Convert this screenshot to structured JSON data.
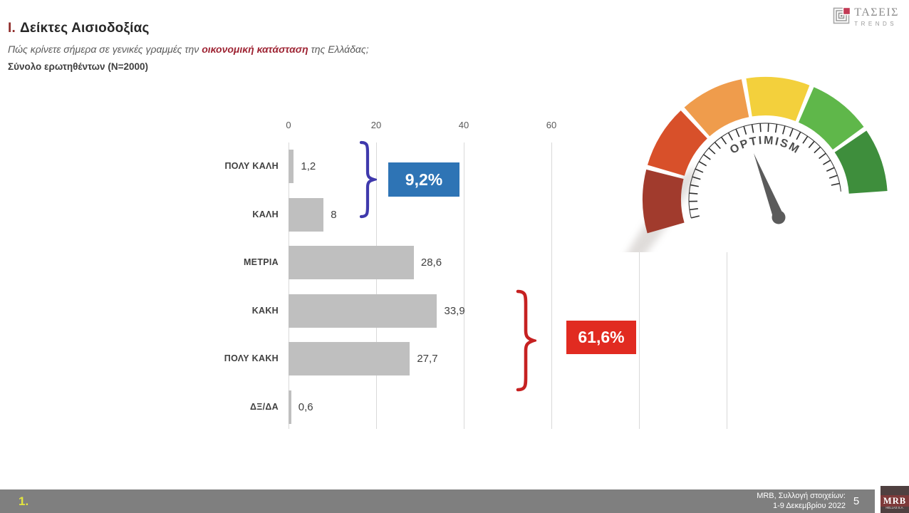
{
  "header": {
    "title_prefix": "I.",
    "title": "Δείκτες Αισιοδοξίας",
    "question_pre": "Πώς κρίνετε σήμερα σε γενικές γραμμές την ",
    "question_highlight": "οικονομική κατάσταση",
    "question_post": " της Ελλάδας;",
    "sample": "Σύνολο ερωτηθέντων (N=2000)"
  },
  "brand": {
    "name": "ΤΑΣΕΙΣ",
    "sub": "TRENDS"
  },
  "chart_data": {
    "type": "bar",
    "orientation": "horizontal",
    "title": "Πώς κρίνετε σήμερα σε γενικές γραμμές την οικονομική κατάσταση της Ελλάδας;",
    "categories": [
      "ΠΟΛΥ ΚΑΛΗ",
      "ΚΑΛΗ",
      "ΜΕΤΡΙΑ",
      "ΚΑΚΗ",
      "ΠΟΛΥ ΚΑΚΗ",
      "ΔΞ/ΔΑ"
    ],
    "values": [
      1.2,
      8,
      28.6,
      33.9,
      27.7,
      0.6
    ],
    "value_labels": [
      "1,2",
      "8",
      "28,6",
      "33,9",
      "27,7",
      "0,6"
    ],
    "xlim": [
      0,
      100
    ],
    "x_ticks": [
      0,
      20,
      40,
      60
    ],
    "gridlines": [
      0,
      20,
      40,
      60,
      80,
      100
    ],
    "grid": true,
    "bar_color": "#bfbfbf",
    "annotations": [
      {
        "text": "9,2%",
        "color": "#2e74b5",
        "groups": [
          "ΠΟΛΥ ΚΑΛΗ",
          "ΚΑΛΗ"
        ]
      },
      {
        "text": "61,6%",
        "color": "#e12b21",
        "groups": [
          "ΚΑΚΗ",
          "ΠΟΛΥ ΚΑΚΗ"
        ]
      }
    ]
  },
  "gauge": {
    "label": "OPTIMISM",
    "segment_colors": [
      "#a13b2d",
      "#d8502a",
      "#ef9c4c",
      "#f3d03c",
      "#5fb74a",
      "#3e8e3c"
    ],
    "needle_color": "#5b5b5b"
  },
  "footer": {
    "section": "1.",
    "source_line1": "MRB, Συλλογή στοιχείων:",
    "source_line2": "1-9 Δεκεμβρίου 2022",
    "page": "5",
    "logo_text": "MRB",
    "logo_sub": "HELLAS S.A."
  }
}
